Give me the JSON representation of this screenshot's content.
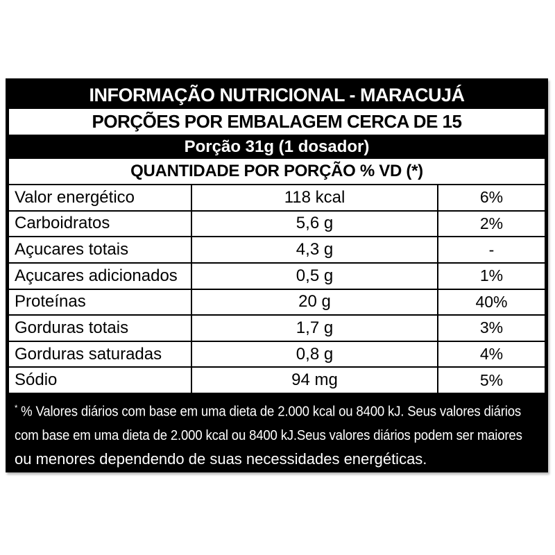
{
  "label": {
    "title": "INFORMAÇÃO NUTRICIONAL - MARACUJÁ",
    "servings_per_package": "PORÇÕES POR EMBALAGEM CERCA DE 15",
    "serving_size": "Porção 31g (1 dosador)",
    "columns_header": "QUANTIDADE POR PORÇÃO % VD (*)",
    "rows": [
      {
        "label": "Valor energético",
        "amount": "118 kcal",
        "vd": "6%"
      },
      {
        "label": "Carboidratos",
        "amount": "5,6 g",
        "vd": "2%"
      },
      {
        "label": "Açucares totais",
        "amount": "4,3 g",
        "vd": "-"
      },
      {
        "label": "Açucares adicionados",
        "amount": "0,5 g",
        "vd": "1%"
      },
      {
        "label": "Proteínas",
        "amount": "20 g",
        "vd": "40%"
      },
      {
        "label": "Gorduras totais",
        "amount": "1,7 g",
        "vd": "3%"
      },
      {
        "label": "Gorduras saturadas",
        "amount": "0,8 g",
        "vd": "4%"
      },
      {
        "label": "Sódio",
        "amount": "94 mg",
        "vd": "5%"
      }
    ],
    "footnote_star": "*",
    "footnote_lines": [
      " % Valores diários com base em uma dieta de 2.000 kcal ou 8400 kJ. Seus valores diários",
      "com base em uma dieta de 2.000 kcal ou 8400 kJ.Seus valores diários podem ser maiores",
      "ou menores dependendo de suas necessidades energéticas."
    ],
    "colors": {
      "band_background": "#000000",
      "band_text": "#ffffff",
      "table_background": "#ffffff",
      "table_text": "#000000",
      "border": "#000000"
    }
  }
}
